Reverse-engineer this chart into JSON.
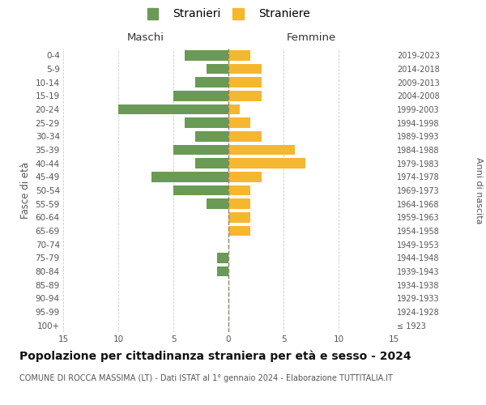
{
  "age_groups": [
    "100+",
    "95-99",
    "90-94",
    "85-89",
    "80-84",
    "75-79",
    "70-74",
    "65-69",
    "60-64",
    "55-59",
    "50-54",
    "45-49",
    "40-44",
    "35-39",
    "30-34",
    "25-29",
    "20-24",
    "15-19",
    "10-14",
    "5-9",
    "0-4"
  ],
  "birth_years": [
    "≤ 1923",
    "1924-1928",
    "1929-1933",
    "1934-1938",
    "1939-1943",
    "1944-1948",
    "1949-1953",
    "1954-1958",
    "1959-1963",
    "1964-1968",
    "1969-1973",
    "1974-1978",
    "1979-1983",
    "1984-1988",
    "1989-1993",
    "1994-1998",
    "1999-2003",
    "2004-2008",
    "2009-2013",
    "2014-2018",
    "2019-2023"
  ],
  "males": [
    0,
    0,
    0,
    0,
    1,
    1,
    0,
    0,
    0,
    2,
    5,
    7,
    3,
    5,
    3,
    4,
    10,
    5,
    3,
    2,
    4
  ],
  "females": [
    0,
    0,
    0,
    0,
    0,
    0,
    0,
    2,
    2,
    2,
    2,
    3,
    7,
    6,
    3,
    2,
    1,
    3,
    3,
    3,
    2
  ],
  "male_color": "#6a9a55",
  "female_color": "#f5b730",
  "center_line_color": "#888866",
  "grid_color": "#cccccc",
  "background_color": "#ffffff",
  "title": "Popolazione per cittadinanza straniera per età e sesso - 2024",
  "subtitle": "COMUNE DI ROCCA MASSIMA (LT) - Dati ISTAT al 1° gennaio 2024 - Elaborazione TUTTITALIA.IT",
  "ylabel_left": "Fasce di età",
  "ylabel_right": "Anni di nascita",
  "xlabel_left": "Maschi",
  "xlabel_right": "Femmine",
  "legend_male": "Stranieri",
  "legend_female": "Straniere",
  "xlim": 15,
  "title_fontsize": 10,
  "subtitle_fontsize": 7,
  "label_fontsize": 9,
  "tick_fontsize": 7.5,
  "bar_height": 0.75
}
